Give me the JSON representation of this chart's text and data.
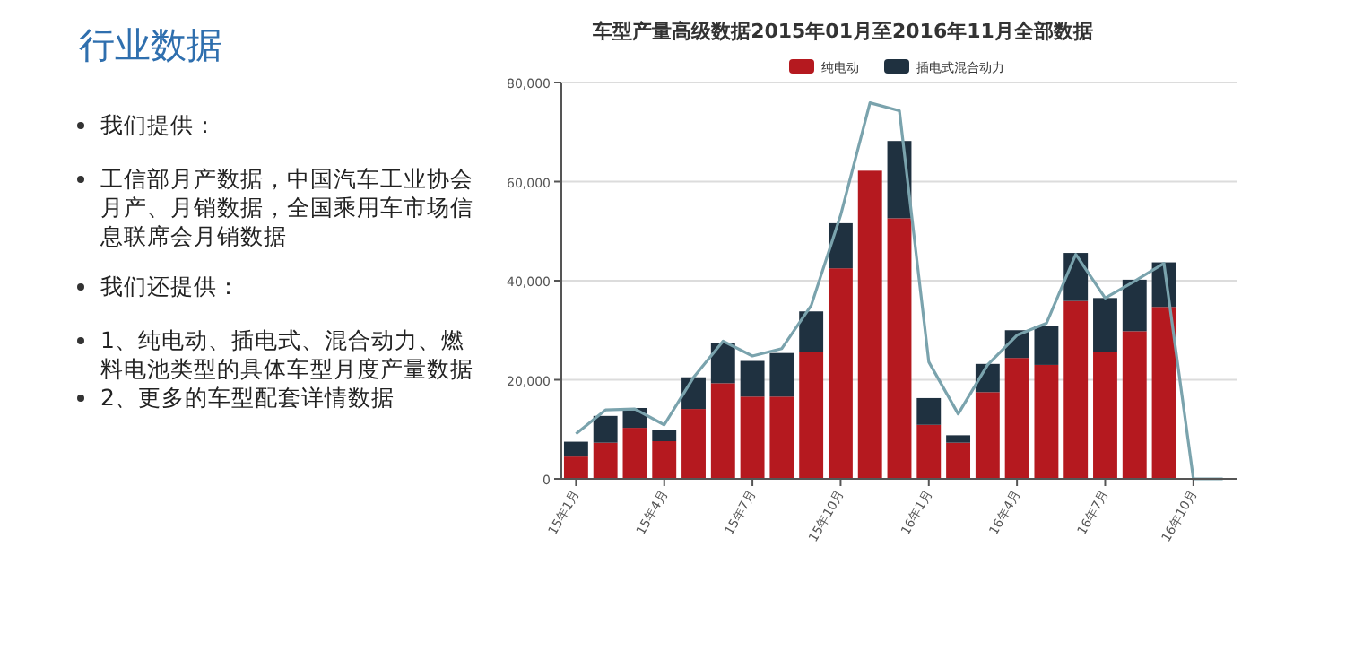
{
  "chart_data": [
    {
      "type": "other",
      "title": "行业数据",
      "annotations": [
        "我们提供：",
        "工信部月产数据，中国汽车工业协会月产、月销数据，全国乘用车市场信息联席会月销数据",
        "我们还提供：",
        "1、纯电动、插电式、混合动力、燃料电池类型的具体车型月度产量数据",
        "2、更多的车型配套详情数据"
      ]
    },
    {
      "type": "bar",
      "title": "车型产量高级数据2015年01月至2016年11月全部数据",
      "stacked": true,
      "legend": "top",
      "grid": "y",
      "categories": [
        "15年1月",
        null,
        null,
        "15年4月",
        null,
        null,
        "15年7月",
        null,
        null,
        "15年10月",
        null,
        null,
        "16年1月",
        null,
        null,
        "16年4月",
        null,
        null,
        "16年7月",
        null,
        null,
        "16年10月",
        null
      ],
      "ylim": [
        0,
        80000
      ],
      "yticks": [
        0,
        {
          "value": 20000,
          "label": "20,000"
        },
        {
          "value": 40000,
          "label": "40,000"
        },
        {
          "value": 60000,
          "label": "60,000"
        },
        {
          "value": 80000,
          "label": "80,000"
        }
      ],
      "series": [
        {
          "name": "纯电动",
          "color": "#b5191f",
          "values": [
            4500,
            7300,
            10300,
            7600,
            14100,
            19300,
            16600,
            16600,
            25700,
            42500,
            62200,
            52600,
            10900,
            7300,
            17500,
            24400,
            23000,
            35900,
            25700,
            29800,
            34700,
            null,
            null
          ]
        },
        {
          "name": "插电式混合动力",
          "color": "#1f3140",
          "values": [
            3000,
            5400,
            4000,
            2300,
            6400,
            8100,
            7200,
            8800,
            8100,
            9100,
            0,
            15600,
            5400,
            1500,
            5700,
            5600,
            7800,
            9700,
            10800,
            10400,
            9000,
            null,
            null
          ]
        },
        {
          "type": "line",
          "color": "#7aa3ad",
          "values": [
            9100,
            13900,
            14100,
            10900,
            20500,
            27800,
            24800,
            26300,
            35000,
            53200,
            75900,
            74300,
            23600,
            13100,
            23000,
            29000,
            31400,
            45300,
            36500,
            39900,
            43500,
            0,
            0
          ]
        }
      ]
    }
  ]
}
